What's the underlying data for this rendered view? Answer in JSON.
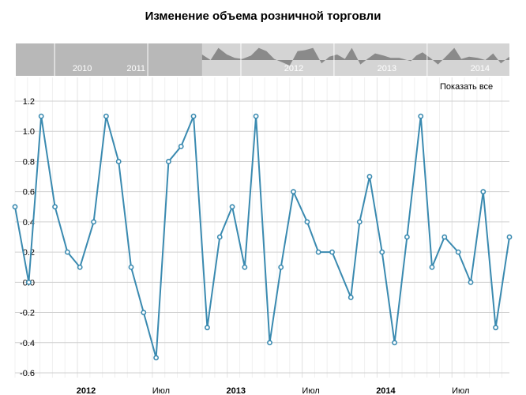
{
  "chart_data": {
    "type": "line",
    "title": "Изменение объема розничной торговли",
    "x_unit": "months since 2012-01",
    "x": [
      -5.0,
      -3.9,
      -2.9,
      -1.8,
      -0.8,
      0.2,
      1.3,
      2.3,
      3.3,
      4.3,
      5.3,
      6.3,
      7.3,
      8.3,
      9.3,
      10.4,
      11.4,
      12.4,
      13.4,
      14.3,
      15.4,
      16.3,
      17.3,
      18.4,
      19.3,
      20.4,
      21.9,
      22.6,
      23.4,
      24.4,
      25.4,
      26.4,
      27.5,
      28.4,
      29.4,
      30.5,
      31.5,
      32.5,
      33.5,
      34.6
    ],
    "values": [
      0.5,
      0.0,
      1.1,
      0.5,
      0.2,
      0.1,
      0.4,
      1.1,
      0.8,
      0.1,
      -0.2,
      -0.5,
      0.8,
      0.9,
      1.1,
      -0.3,
      0.3,
      0.5,
      0.1,
      1.1,
      -0.4,
      0.1,
      0.6,
      0.4,
      0.2,
      0.2,
      -0.1,
      0.4,
      0.7,
      0.2,
      -0.4,
      0.3,
      1.1,
      0.1,
      0.3,
      0.2,
      0.0,
      0.6,
      -0.3,
      0.3
    ],
    "xlim": [
      -5.0,
      34.6
    ],
    "ylim": [
      -0.6,
      1.2
    ],
    "y_ticks": [
      "1.2",
      "1.0",
      "0.8",
      "0.6",
      "0.4",
      "0.2",
      "0.0",
      "-0.2",
      "-0.4",
      "-0.6"
    ],
    "y_tick_values": [
      1.2,
      1.0,
      0.8,
      0.6,
      0.4,
      0.2,
      0.0,
      -0.2,
      -0.4,
      -0.6
    ],
    "x_ticks": [
      {
        "label": "2012",
        "at": 0,
        "bold": true
      },
      {
        "label": "Июл",
        "at": 6,
        "bold": false
      },
      {
        "label": "2013",
        "at": 12,
        "bold": true
      },
      {
        "label": "Июл",
        "at": 18,
        "bold": false
      },
      {
        "label": "2014",
        "at": 24,
        "bold": true
      },
      {
        "label": "Июл",
        "at": 30,
        "bold": false
      }
    ],
    "navigator_labels": [
      {
        "label": "2010",
        "at": -24
      },
      {
        "label": "2011",
        "at": -12
      },
      {
        "label": "2012",
        "at": 0
      },
      {
        "label": "2013",
        "at": 12
      },
      {
        "label": "2014",
        "at": 24
      }
    ],
    "navigator_range": [
      -29,
      34.6
    ],
    "grid": true,
    "legend": "none",
    "color": "#3a8ab0"
  },
  "controls": {
    "show_all": "Показать все"
  }
}
